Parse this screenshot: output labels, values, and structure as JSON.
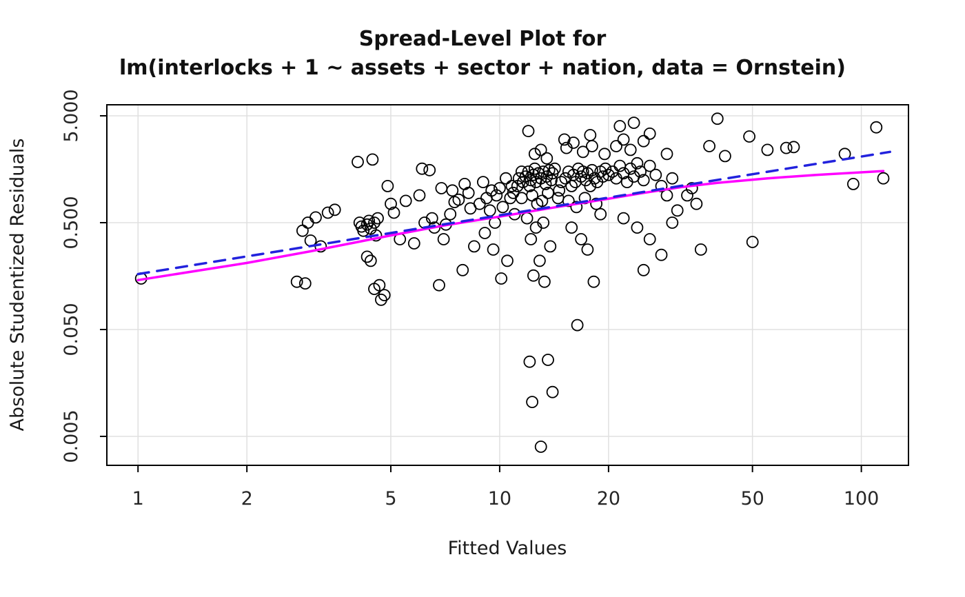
{
  "title": {
    "line1": "Spread-Level Plot for",
    "line2": "lm(interlocks + 1 ~ assets + sector + nation, data = Ornstein)"
  },
  "chart_data": {
    "type": "scatter",
    "title": "Spread-Level Plot for lm(interlocks + 1 ~ assets + sector + nation, data = Ornstein)",
    "xlabel": "Fitted Values",
    "ylabel": "Absolute Studentized Residuals",
    "x_scale": "log",
    "y_scale": "log",
    "xlim": [
      0.82,
      135
    ],
    "ylim": [
      0.00268,
      6.34
    ],
    "x_ticks": [
      1,
      2,
      5,
      10,
      20,
      50,
      100
    ],
    "x_tick_labels": [
      "1",
      "2",
      "5",
      "10",
      "20",
      "50",
      "100"
    ],
    "y_ticks": [
      0.005,
      0.05,
      0.5,
      5
    ],
    "y_tick_labels": [
      "0.005",
      "0.050",
      "0.500",
      "5.000"
    ],
    "grid": true,
    "grid_color": "#e0e0e0",
    "box_color": "#000000",
    "point_style": {
      "marker": "circle-open",
      "color": "#000000",
      "radius": 8,
      "stroke_width": 1.8
    },
    "points": [
      [
        1.02,
        0.15
      ],
      [
        2.75,
        0.14
      ],
      [
        2.9,
        0.135
      ],
      [
        2.85,
        0.42
      ],
      [
        2.95,
        0.5
      ],
      [
        3.0,
        0.34
      ],
      [
        3.1,
        0.56
      ],
      [
        3.2,
        0.3
      ],
      [
        3.35,
        0.62
      ],
      [
        3.5,
        0.66
      ],
      [
        4.05,
        1.85
      ],
      [
        4.45,
        1.95
      ],
      [
        4.1,
        0.5
      ],
      [
        4.15,
        0.46
      ],
      [
        4.2,
        0.42
      ],
      [
        4.3,
        0.48
      ],
      [
        4.35,
        0.52
      ],
      [
        4.4,
        0.44
      ],
      [
        4.5,
        0.5
      ],
      [
        4.55,
        0.38
      ],
      [
        4.6,
        0.55
      ],
      [
        4.3,
        0.24
      ],
      [
        4.4,
        0.22
      ],
      [
        4.5,
        0.12
      ],
      [
        4.65,
        0.13
      ],
      [
        4.7,
        0.095
      ],
      [
        4.8,
        0.105
      ],
      [
        4.9,
        1.1
      ],
      [
        5.0,
        0.75
      ],
      [
        5.1,
        0.62
      ],
      [
        5.3,
        0.35
      ],
      [
        5.5,
        0.8
      ],
      [
        5.8,
        0.32
      ],
      [
        6.0,
        0.9
      ],
      [
        6.1,
        1.6
      ],
      [
        6.4,
        1.55
      ],
      [
        6.2,
        0.5
      ],
      [
        6.5,
        0.55
      ],
      [
        6.6,
        0.45
      ],
      [
        6.8,
        0.13
      ],
      [
        7.0,
        0.35
      ],
      [
        7.1,
        0.48
      ],
      [
        7.3,
        0.6
      ],
      [
        7.5,
        0.78
      ],
      [
        7.7,
        0.82
      ],
      [
        7.9,
        0.18
      ],
      [
        8.0,
        1.15
      ],
      [
        8.2,
        0.95
      ],
      [
        8.3,
        0.68
      ],
      [
        8.5,
        0.3
      ],
      [
        6.9,
        1.05
      ],
      [
        7.4,
        1.0
      ],
      [
        8.8,
        0.75
      ],
      [
        9.0,
        1.2
      ],
      [
        9.2,
        0.85
      ],
      [
        9.4,
        0.65
      ],
      [
        9.5,
        1.0
      ],
      [
        9.7,
        0.5
      ],
      [
        9.8,
        0.9
      ],
      [
        10.0,
        1.05
      ],
      [
        10.2,
        0.7
      ],
      [
        10.4,
        1.3
      ],
      [
        10.5,
        0.22
      ],
      [
        10.7,
        0.85
      ],
      [
        10.8,
        1.1
      ],
      [
        11.0,
        0.6
      ],
      [
        9.1,
        0.4
      ],
      [
        9.6,
        0.28
      ],
      [
        10.1,
        0.15
      ],
      [
        10.9,
        0.95
      ],
      [
        11.2,
        1.1
      ],
      [
        11.3,
        1.3
      ],
      [
        11.5,
        1.5
      ],
      [
        11.6,
        1.2
      ],
      [
        11.8,
        1.35
      ],
      [
        12.0,
        1.5
      ],
      [
        12.1,
        1.1
      ],
      [
        12.2,
        1.25
      ],
      [
        12.4,
        1.4
      ],
      [
        12.5,
        1.6
      ],
      [
        12.6,
        1.2
      ],
      [
        12.8,
        1.45
      ],
      [
        13.0,
        1.3
      ],
      [
        13.2,
        1.5
      ],
      [
        13.4,
        1.15
      ],
      [
        13.5,
        1.35
      ],
      [
        13.7,
        1.55
      ],
      [
        13.9,
        1.25
      ],
      [
        14.0,
        1.45
      ],
      [
        14.2,
        1.6
      ],
      [
        12.0,
        3.6
      ],
      [
        12.5,
        2.2
      ],
      [
        13.0,
        2.4
      ],
      [
        13.5,
        2.0
      ],
      [
        11.5,
        0.85
      ],
      [
        12.3,
        0.9
      ],
      [
        12.7,
        0.75
      ],
      [
        13.1,
        0.8
      ],
      [
        13.6,
        0.95
      ],
      [
        14.5,
        0.85
      ],
      [
        11.9,
        0.55
      ],
      [
        12.6,
        0.45
      ],
      [
        13.2,
        0.5
      ],
      [
        12.2,
        0.35
      ],
      [
        13.8,
        0.3
      ],
      [
        12.9,
        0.22
      ],
      [
        12.4,
        0.16
      ],
      [
        13.3,
        0.14
      ],
      [
        12.1,
        0.025
      ],
      [
        13.6,
        0.026
      ],
      [
        12.3,
        0.0105
      ],
      [
        14.0,
        0.013
      ],
      [
        13.0,
        0.004
      ],
      [
        14.8,
        1.2
      ],
      [
        14.6,
        1.0
      ],
      [
        15.2,
        1.3
      ],
      [
        15.5,
        1.5
      ],
      [
        15.8,
        1.1
      ],
      [
        16.0,
        1.4
      ],
      [
        16.2,
        1.2
      ],
      [
        16.5,
        1.6
      ],
      [
        16.8,
        1.35
      ],
      [
        17.0,
        1.5
      ],
      [
        17.3,
        1.25
      ],
      [
        17.5,
        1.45
      ],
      [
        17.8,
        1.1
      ],
      [
        18.0,
        1.55
      ],
      [
        18.3,
        1.3
      ],
      [
        18.6,
        1.2
      ],
      [
        19.0,
        1.5
      ],
      [
        19.3,
        1.35
      ],
      [
        19.6,
        1.6
      ],
      [
        20.0,
        1.4
      ],
      [
        15.3,
        2.5
      ],
      [
        16.0,
        2.8
      ],
      [
        17.0,
        2.3
      ],
      [
        18.0,
        2.6
      ],
      [
        15.5,
        0.8
      ],
      [
        16.3,
        0.7
      ],
      [
        17.2,
        0.85
      ],
      [
        18.5,
        0.75
      ],
      [
        19.0,
        0.6
      ],
      [
        15.8,
        0.45
      ],
      [
        16.8,
        0.35
      ],
      [
        17.5,
        0.28
      ],
      [
        18.2,
        0.14
      ],
      [
        15.1,
        3.0
      ],
      [
        17.8,
        3.3
      ],
      [
        19.5,
        2.2
      ],
      [
        16.4,
        0.055
      ],
      [
        20.5,
        1.5
      ],
      [
        21,
        1.3
      ],
      [
        21.5,
        1.7
      ],
      [
        22,
        1.45
      ],
      [
        22.5,
        1.2
      ],
      [
        23,
        1.6
      ],
      [
        23.5,
        1.35
      ],
      [
        24,
        1.8
      ],
      [
        24.5,
        1.5
      ],
      [
        25,
        1.25
      ],
      [
        26,
        1.7
      ],
      [
        27,
        1.4
      ],
      [
        28,
        1.1
      ],
      [
        29,
        0.9
      ],
      [
        30,
        1.3
      ],
      [
        21,
        2.6
      ],
      [
        22,
        3.0
      ],
      [
        23,
        2.4
      ],
      [
        25,
        2.9
      ],
      [
        21.5,
        4.0
      ],
      [
        23.5,
        4.3
      ],
      [
        26,
        3.4
      ],
      [
        22,
        0.55
      ],
      [
        24,
        0.45
      ],
      [
        26,
        0.35
      ],
      [
        28,
        0.25
      ],
      [
        25,
        0.18
      ],
      [
        30,
        0.5
      ],
      [
        31,
        0.65
      ],
      [
        29,
        2.2
      ],
      [
        33,
        0.9
      ],
      [
        34,
        1.05
      ],
      [
        35,
        0.75
      ],
      [
        36,
        0.28
      ],
      [
        38,
        2.6
      ],
      [
        40,
        4.7
      ],
      [
        42,
        2.1
      ],
      [
        49,
        3.2
      ],
      [
        50,
        0.33
      ],
      [
        55,
        2.4
      ],
      [
        62,
        2.5
      ],
      [
        65,
        2.55
      ],
      [
        90,
        2.2
      ],
      [
        95,
        1.15
      ],
      [
        110,
        3.9
      ],
      [
        115,
        1.3
      ]
    ],
    "lines": [
      {
        "name": "lowess-smooth-line",
        "color": "#FF00FF",
        "style": "solid",
        "width": 3.5,
        "points": [
          [
            1,
            0.145
          ],
          [
            2,
            0.21
          ],
          [
            3,
            0.27
          ],
          [
            5,
            0.38
          ],
          [
            7,
            0.47
          ],
          [
            10,
            0.57
          ],
          [
            14,
            0.69
          ],
          [
            18,
            0.79
          ],
          [
            25,
            0.95
          ],
          [
            32,
            1.08
          ],
          [
            40,
            1.18
          ],
          [
            55,
            1.3
          ],
          [
            75,
            1.4
          ],
          [
            115,
            1.52
          ]
        ]
      },
      {
        "name": "linear-fit-line",
        "color": "#2222DD",
        "style": "dashed",
        "width": 3.5,
        "points": [
          [
            1,
            0.165
          ],
          [
            120,
            2.3
          ]
        ]
      }
    ],
    "legend": null,
    "annotations": []
  }
}
